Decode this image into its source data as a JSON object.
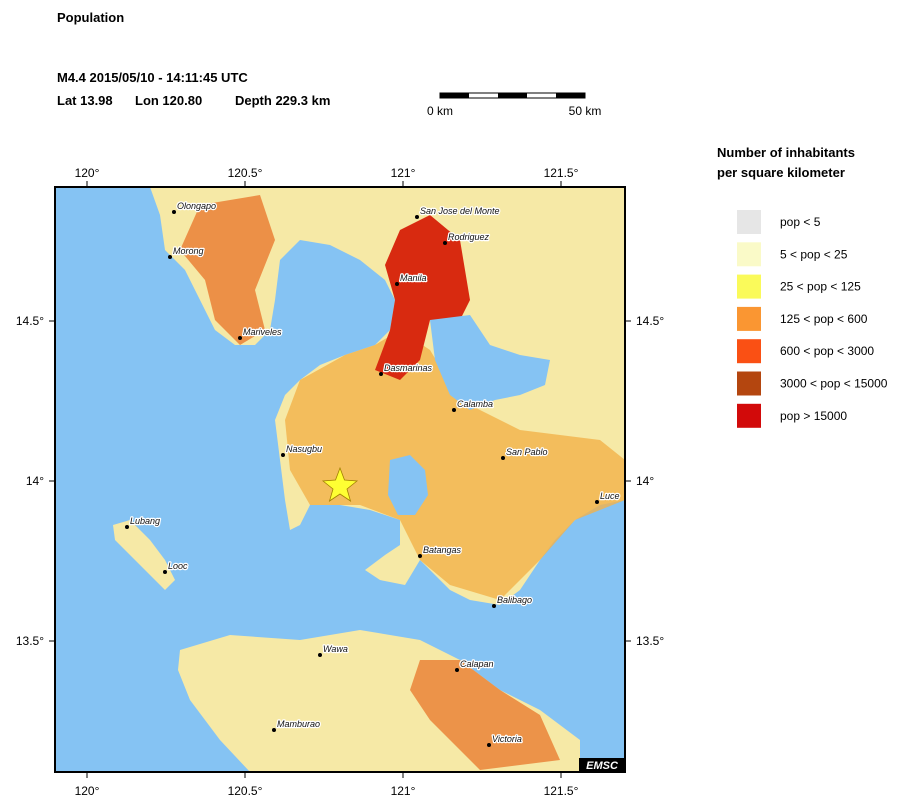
{
  "header": {
    "title": "Population",
    "event": "M4.4  2015/05/10 - 14:11:45 UTC",
    "lat": "Lat 13.98",
    "lon": "Lon 120.80",
    "depth": "Depth 229.3 km"
  },
  "scale_bar": {
    "start": "0 km",
    "end": "50 km"
  },
  "map": {
    "lon_ticks": [
      {
        "value": 120,
        "label": "120°"
      },
      {
        "value": 120.5,
        "label": "120.5°"
      },
      {
        "value": 121,
        "label": "121°"
      },
      {
        "value": 121.5,
        "label": "121.5°"
      }
    ],
    "lat_ticks": [
      {
        "value": 14.5,
        "label": "14.5°"
      },
      {
        "value": 14,
        "label": "14°"
      },
      {
        "value": 13.5,
        "label": "13.5°"
      }
    ],
    "cities": [
      "Olongapo",
      "Morong",
      "Mariveles",
      "San Jose del Monte",
      "Rodriguez",
      "Manila",
      "Dasmarinas",
      "Calamba",
      "Nasugbu",
      "San Pablo",
      "Luce",
      "Lubang",
      "Looc",
      "Batangas",
      "Balibago",
      "Wawa",
      "Calapan",
      "Mamburao",
      "Victoria"
    ],
    "badge": "EMSC"
  },
  "legend": {
    "title": [
      "Number of inhabitants",
      "per square kilometer"
    ],
    "items": [
      {
        "label": "pop < 5",
        "color": "#e6e6e6"
      },
      {
        "label": "5 < pop < 25",
        "color": "#fafac8"
      },
      {
        "label": "25 < pop < 125",
        "color": "#fafa5a"
      },
      {
        "label": "125 < pop < 600",
        "color": "#fa9632"
      },
      {
        "label": "600 < pop < 3000",
        "color": "#fa5014"
      },
      {
        "label": "3000 < pop < 15000",
        "color": "#b4460f"
      },
      {
        "label": "pop > 15000",
        "color": "#d20a0a"
      }
    ]
  }
}
